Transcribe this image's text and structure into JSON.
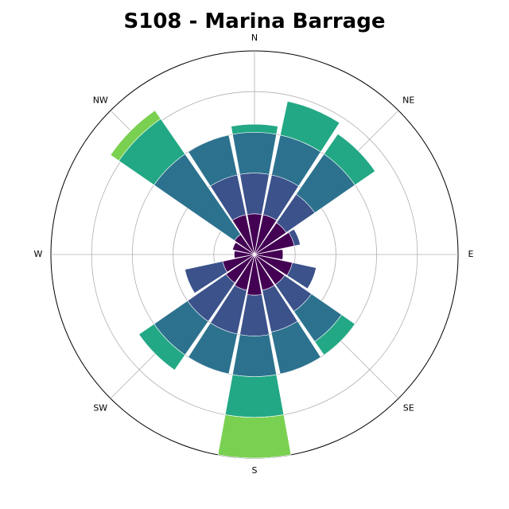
{
  "chart_data": {
    "type": "windrose",
    "title": "S108 - Marina Barrage",
    "directions": [
      "N",
      "NNE",
      "NE",
      "ENE",
      "E",
      "ESE",
      "SE",
      "SSE",
      "S",
      "SSW",
      "SW",
      "WSW",
      "W",
      "WNW",
      "NW",
      "NNW"
    ],
    "direction_labels": [
      "N",
      "NE",
      "E",
      "SE",
      "S",
      "SW",
      "W",
      "NW"
    ],
    "radial_gridlines": [
      1,
      2,
      3,
      4,
      5
    ],
    "rmax": 5,
    "grid": true,
    "bins": [
      {
        "color": "#440154",
        "values": [
          1.0,
          1.0,
          0.95,
          1.0,
          0.7,
          0.95,
          0.9,
          0.9,
          1.0,
          0.9,
          0.85,
          0.8,
          0.5,
          0.55,
          0.6,
          1.0
        ]
      },
      {
        "color": "#3b528b",
        "values": [
          2.0,
          2.0,
          1.8,
          1.15,
          0.0,
          1.55,
          1.7,
          1.95,
          2.0,
          2.0,
          2.0,
          1.75,
          0.0,
          0.0,
          0.0,
          2.0
        ]
      },
      {
        "color": "#2c728e",
        "values": [
          3.0,
          3.0,
          3.0,
          0.0,
          0.0,
          0.0,
          2.6,
          3.0,
          3.0,
          3.0,
          3.0,
          0.0,
          0.0,
          0.0,
          3.0,
          3.0
        ]
      },
      {
        "color": "#21918c",
        "values": [
          3.0,
          3.0,
          3.0,
          0.0,
          0.0,
          0.0,
          2.6,
          3.0,
          3.0,
          3.0,
          3.0,
          0.0,
          0.0,
          0.0,
          3.0,
          3.0
        ]
      },
      {
        "color": "#22a884",
        "values": [
          3.2,
          3.85,
          3.6,
          0.0,
          0.0,
          0.0,
          3.0,
          0.0,
          4.0,
          0.0,
          3.45,
          0.0,
          0.0,
          0.0,
          4.05,
          0.0
        ]
      },
      {
        "color": "#7ad151",
        "values": [
          0.0,
          0.0,
          0.0,
          0.0,
          0.0,
          0.0,
          0.0,
          0.0,
          5.0,
          0.0,
          0.0,
          0.0,
          0.0,
          0.0,
          4.3,
          0.0
        ]
      }
    ]
  }
}
